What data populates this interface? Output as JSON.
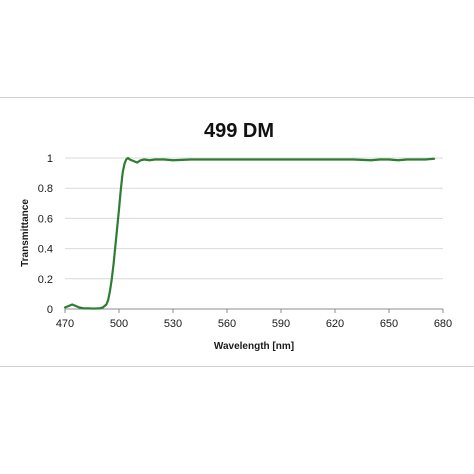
{
  "chart_data": {
    "type": "line",
    "title": "499 DM",
    "xlabel": "Wavelength [nm]",
    "ylabel": "Transmittance",
    "xlim": [
      470,
      680
    ],
    "ylim": [
      0,
      1
    ],
    "xticks": [
      470,
      500,
      530,
      560,
      590,
      620,
      650,
      680
    ],
    "yticks": [
      0,
      0.2,
      0.4,
      0.6,
      0.8,
      1
    ],
    "ytick_labels": [
      "0",
      "0.2",
      "0.4",
      "0.6",
      "0.8",
      "1"
    ],
    "grid": "horizontal",
    "legend": "none",
    "line_color": "#2e7d32",
    "series": [
      {
        "x": [
          470,
          472,
          474,
          476,
          478,
          480,
          483,
          486,
          489,
          491,
          493,
          494,
          495,
          496,
          497,
          498,
          499,
          500,
          501,
          502,
          503,
          504,
          505,
          506,
          508,
          510,
          512,
          514,
          517,
          520,
          525,
          530,
          540,
          550,
          560,
          570,
          580,
          590,
          600,
          610,
          620,
          630,
          640,
          645,
          650,
          655,
          660,
          665,
          670,
          675
        ],
        "y": [
          0.01,
          0.02,
          0.03,
          0.02,
          0.01,
          0.005,
          0.004,
          0.003,
          0.004,
          0.01,
          0.03,
          0.06,
          0.12,
          0.2,
          0.3,
          0.42,
          0.54,
          0.66,
          0.79,
          0.9,
          0.96,
          0.99,
          1.0,
          0.99,
          0.98,
          0.97,
          0.985,
          0.99,
          0.985,
          0.99,
          0.99,
          0.985,
          0.99,
          0.99,
          0.99,
          0.99,
          0.99,
          0.99,
          0.99,
          0.99,
          0.99,
          0.99,
          0.985,
          0.99,
          0.99,
          0.985,
          0.99,
          0.99,
          0.99,
          0.995
        ]
      }
    ]
  }
}
